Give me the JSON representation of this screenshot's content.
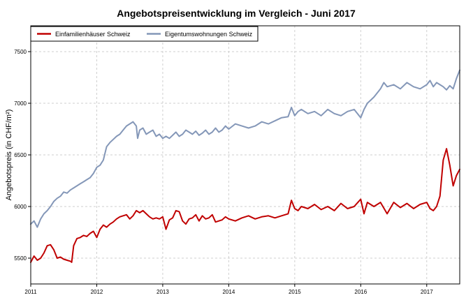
{
  "chart_data": {
    "type": "line",
    "title": "Angebotspreisentwicklung im Vergleich - Juni 2017",
    "xlabel": "",
    "ylabel": "Angebotspreis (in CHF/m²)",
    "xlim": [
      2011.0,
      2017.5
    ],
    "ylim": [
      5250,
      7750
    ],
    "x_ticks": [
      2011,
      2012,
      2013,
      2014,
      2015,
      2016,
      2017
    ],
    "x_tick_labels": [
      "2011",
      "2012",
      "2013",
      "2014",
      "2015",
      "2016",
      "2017"
    ],
    "y_ticks": [
      5500,
      6000,
      6500,
      7000,
      7500
    ],
    "y_tick_labels": [
      "5500",
      "6000",
      "6500",
      "7000",
      "7500"
    ],
    "grid": true,
    "legend_position": "top-left",
    "series": [
      {
        "name": "Einfamilienhäuser Schweiz",
        "color": "#c00000",
        "x": [
          2011.0,
          2011.05,
          2011.1,
          2011.15,
          2011.2,
          2011.25,
          2011.3,
          2011.35,
          2011.4,
          2011.45,
          2011.5,
          2011.55,
          2011.6,
          2011.62,
          2011.65,
          2011.7,
          2011.75,
          2011.8,
          2011.85,
          2011.9,
          2011.95,
          2012.0,
          2012.05,
          2012.1,
          2012.15,
          2012.2,
          2012.25,
          2012.3,
          2012.35,
          2012.4,
          2012.45,
          2012.5,
          2012.55,
          2012.6,
          2012.65,
          2012.7,
          2012.75,
          2012.8,
          2012.85,
          2012.9,
          2012.95,
          2013.0,
          2013.05,
          2013.1,
          2013.15,
          2013.2,
          2013.25,
          2013.3,
          2013.35,
          2013.4,
          2013.45,
          2013.5,
          2013.55,
          2013.6,
          2013.65,
          2013.7,
          2013.75,
          2013.8,
          2013.85,
          2013.9,
          2013.95,
          2014.0,
          2014.1,
          2014.2,
          2014.3,
          2014.4,
          2014.5,
          2014.6,
          2014.7,
          2014.8,
          2014.9,
          2014.95,
          2015.0,
          2015.05,
          2015.1,
          2015.2,
          2015.3,
          2015.4,
          2015.5,
          2015.6,
          2015.7,
          2015.8,
          2015.9,
          2016.0,
          2016.05,
          2016.1,
          2016.2,
          2016.3,
          2016.4,
          2016.5,
          2016.6,
          2016.7,
          2016.8,
          2016.9,
          2017.0,
          2017.05,
          2017.1,
          2017.15,
          2017.2,
          2017.25,
          2017.3,
          2017.35,
          2017.4,
          2017.45,
          2017.5
        ],
        "values": [
          5460,
          5520,
          5480,
          5500,
          5550,
          5620,
          5630,
          5580,
          5500,
          5510,
          5490,
          5480,
          5470,
          5460,
          5620,
          5690,
          5700,
          5720,
          5710,
          5740,
          5760,
          5700,
          5780,
          5820,
          5800,
          5830,
          5850,
          5880,
          5900,
          5910,
          5920,
          5880,
          5910,
          5960,
          5940,
          5960,
          5930,
          5900,
          5880,
          5890,
          5880,
          5900,
          5780,
          5870,
          5890,
          5960,
          5950,
          5860,
          5830,
          5880,
          5890,
          5920,
          5860,
          5910,
          5880,
          5890,
          5920,
          5850,
          5860,
          5870,
          5900,
          5880,
          5860,
          5890,
          5910,
          5880,
          5900,
          5910,
          5890,
          5910,
          5930,
          6060,
          5980,
          5960,
          6000,
          5980,
          6020,
          5970,
          6000,
          5960,
          6030,
          5980,
          6000,
          6070,
          5930,
          6040,
          6000,
          6040,
          5930,
          6040,
          5990,
          6030,
          5980,
          6020,
          6040,
          5980,
          5960,
          6000,
          6100,
          6450,
          6560,
          6400,
          6200,
          6300,
          6360
        ]
      },
      {
        "name": "Eigentumswohnungen Schweiz",
        "color": "#8497b8",
        "x": [
          2011.0,
          2011.05,
          2011.1,
          2011.15,
          2011.2,
          2011.25,
          2011.3,
          2011.35,
          2011.4,
          2011.45,
          2011.5,
          2011.55,
          2011.6,
          2011.65,
          2011.7,
          2011.75,
          2011.8,
          2011.85,
          2011.9,
          2011.95,
          2012.0,
          2012.05,
          2012.1,
          2012.15,
          2012.2,
          2012.25,
          2012.3,
          2012.35,
          2012.4,
          2012.45,
          2012.5,
          2012.55,
          2012.6,
          2012.62,
          2012.65,
          2012.7,
          2012.75,
          2012.8,
          2012.85,
          2012.9,
          2012.95,
          2013.0,
          2013.05,
          2013.1,
          2013.15,
          2013.2,
          2013.25,
          2013.3,
          2013.35,
          2013.4,
          2013.45,
          2013.5,
          2013.55,
          2013.6,
          2013.65,
          2013.7,
          2013.75,
          2013.8,
          2013.85,
          2013.9,
          2013.95,
          2014.0,
          2014.1,
          2014.2,
          2014.3,
          2014.4,
          2014.5,
          2014.6,
          2014.7,
          2014.8,
          2014.9,
          2014.95,
          2015.0,
          2015.05,
          2015.1,
          2015.2,
          2015.3,
          2015.4,
          2015.5,
          2015.6,
          2015.7,
          2015.8,
          2015.9,
          2016.0,
          2016.05,
          2016.1,
          2016.15,
          2016.2,
          2016.25,
          2016.3,
          2016.35,
          2016.4,
          2016.5,
          2016.6,
          2016.7,
          2016.8,
          2016.9,
          2017.0,
          2017.05,
          2017.1,
          2017.15,
          2017.2,
          2017.25,
          2017.3,
          2017.35,
          2017.4,
          2017.45,
          2017.5
        ],
        "values": [
          5830,
          5860,
          5800,
          5880,
          5930,
          5960,
          6000,
          6050,
          6080,
          6100,
          6140,
          6130,
          6160,
          6180,
          6200,
          6220,
          6240,
          6260,
          6280,
          6320,
          6380,
          6400,
          6450,
          6580,
          6620,
          6650,
          6680,
          6700,
          6740,
          6780,
          6800,
          6820,
          6780,
          6660,
          6740,
          6760,
          6700,
          6720,
          6740,
          6680,
          6700,
          6660,
          6680,
          6660,
          6690,
          6720,
          6680,
          6700,
          6740,
          6720,
          6700,
          6730,
          6690,
          6710,
          6740,
          6700,
          6720,
          6760,
          6720,
          6740,
          6780,
          6750,
          6800,
          6780,
          6760,
          6780,
          6820,
          6800,
          6830,
          6860,
          6870,
          6960,
          6880,
          6920,
          6940,
          6900,
          6920,
          6880,
          6940,
          6900,
          6880,
          6920,
          6940,
          6860,
          6940,
          7000,
          7030,
          7060,
          7100,
          7140,
          7200,
          7160,
          7180,
          7140,
          7200,
          7160,
          7140,
          7180,
          7220,
          7160,
          7200,
          7180,
          7160,
          7130,
          7170,
          7140,
          7240,
          7320
        ]
      }
    ]
  }
}
